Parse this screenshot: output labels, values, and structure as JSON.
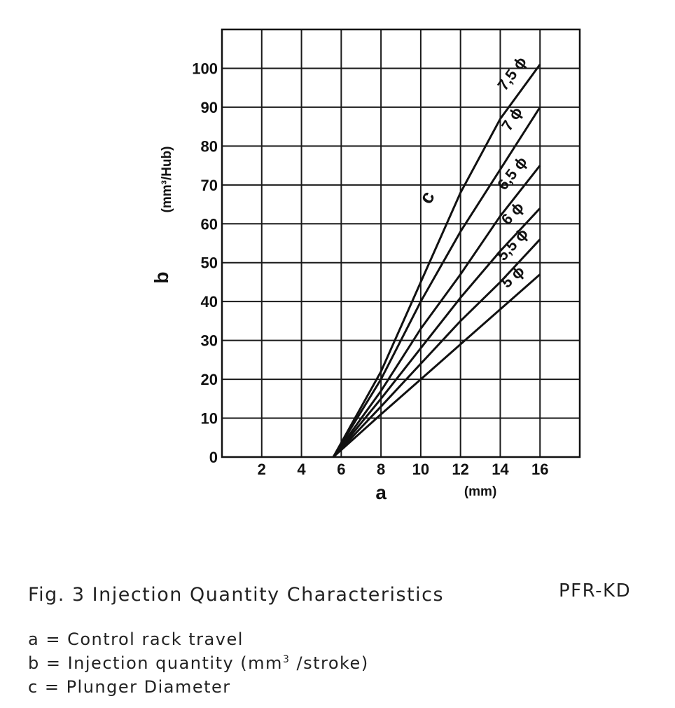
{
  "chart_data": {
    "type": "line",
    "xlabel": "a",
    "x_unit": "(mm)",
    "ylabel": "b",
    "y_unit": "(mm³/Hub)",
    "series_group_label": "c",
    "xlim": [
      0,
      18
    ],
    "ylim": [
      0,
      110
    ],
    "x_ticks": [
      "2",
      "4",
      "6",
      "8",
      "10",
      "12",
      "14",
      "16"
    ],
    "y_ticks": [
      "0",
      "10",
      "20",
      "30",
      "40",
      "50",
      "60",
      "70",
      "80",
      "90",
      "100"
    ],
    "grid": true,
    "series": [
      {
        "name": "5 ϕ",
        "x": [
          5.6,
          8,
          10,
          12,
          14,
          16
        ],
        "y": [
          0,
          11,
          20,
          29,
          38,
          47
        ]
      },
      {
        "name": "5,5 ϕ",
        "x": [
          5.6,
          8,
          10,
          12,
          14,
          16
        ],
        "y": [
          0,
          13,
          24,
          35,
          45,
          56
        ]
      },
      {
        "name": "6 ϕ",
        "x": [
          5.6,
          8,
          10,
          12,
          14,
          16
        ],
        "y": [
          0,
          15,
          28,
          41,
          53,
          64
        ]
      },
      {
        "name": "6,5 ϕ",
        "x": [
          5.6,
          8,
          10,
          12,
          14,
          16
        ],
        "y": [
          0,
          17,
          33,
          47,
          62,
          75
        ]
      },
      {
        "name": "7 ϕ",
        "x": [
          5.6,
          8,
          10,
          12,
          14,
          16
        ],
        "y": [
          0,
          20,
          40,
          58,
          74,
          90
        ]
      },
      {
        "name": "7,5 ϕ",
        "x": [
          5.6,
          8,
          10,
          12,
          14,
          16
        ],
        "y": [
          0,
          22,
          45,
          68,
          87,
          101
        ]
      }
    ]
  },
  "caption": {
    "title": "Fig. 3  Injection Quantity Characteristics",
    "code": "PFR-KD",
    "legend_a": "a = Control rack travel",
    "legend_b_prefix": "b = Injection quantity (mm",
    "legend_b_sup": "3",
    "legend_b_suffix": " /stroke)",
    "legend_c": "c = Plunger Diameter"
  }
}
